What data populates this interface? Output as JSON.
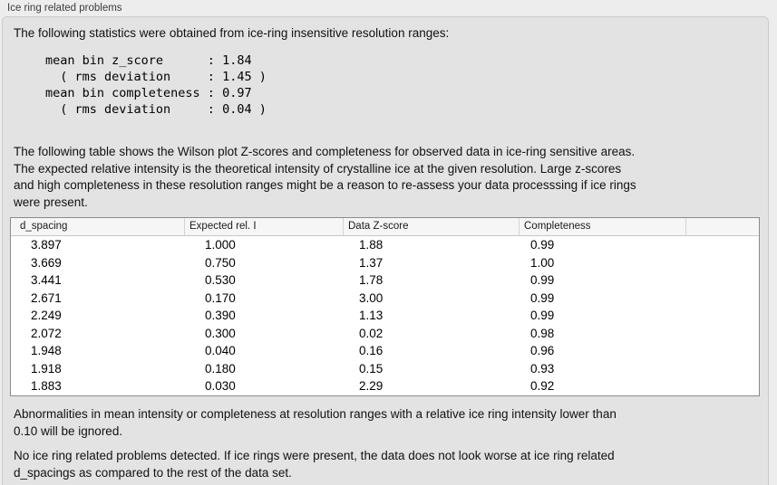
{
  "panel": {
    "title": "Ice ring related problems"
  },
  "texts": {
    "intro": "The following statistics were obtained from ice-ring insensitive resolution ranges:",
    "stats_block": "mean bin z_score      : 1.84\n  ( rms deviation     : 1.45 )\nmean bin completeness : 0.97\n  ( rms deviation     : 0.04 )",
    "table_description": "The following table shows the Wilson plot Z-scores and completeness for observed data in ice-ring sensitive areas.\nThe expected relative intensity is the theoretical intensity of crystalline ice at the given resolution. Large z-scores\nand high completeness in these resolution ranges might be a reason to re-assess your data processsing if ice rings\nwere present.",
    "ignore_note": "Abnormalities in mean intensity or completeness at resolution ranges with a relative ice ring intensity lower than\n0.10 will be ignored.",
    "verdict": "No ice ring related problems detected. If ice rings were present, the data does not look worse at ice ring related\nd_spacings as compared to the rest of the data set."
  },
  "stats": {
    "mean_bin_z_score": "1.84",
    "z_score_rms_deviation": "1.45",
    "mean_bin_completeness": "0.97",
    "completeness_rms_deviation": "0.04"
  },
  "table": {
    "columns": [
      "d_spacing",
      "Expected rel. I",
      "Data Z-score",
      "Completeness",
      ""
    ],
    "rows": [
      [
        "3.897",
        "1.000",
        "1.88",
        "0.99"
      ],
      [
        "3.669",
        "0.750",
        "1.37",
        "1.00"
      ],
      [
        "3.441",
        "0.530",
        "1.78",
        "0.99"
      ],
      [
        "2.671",
        "0.170",
        "3.00",
        "0.99"
      ],
      [
        "2.249",
        "0.390",
        "1.13",
        "0.99"
      ],
      [
        "2.072",
        "0.300",
        "0.02",
        "0.98"
      ],
      [
        "1.948",
        "0.040",
        "0.16",
        "0.96"
      ],
      [
        "1.918",
        "0.180",
        "0.15",
        "0.93"
      ],
      [
        "1.883",
        "0.030",
        "2.29",
        "0.92"
      ]
    ]
  },
  "colors": {
    "window_background": "#ededed",
    "panel_background": "#e3e3e3",
    "table_header_background": "#f6f6f6",
    "table_border": "#8b8b8b",
    "text": "#000000"
  }
}
